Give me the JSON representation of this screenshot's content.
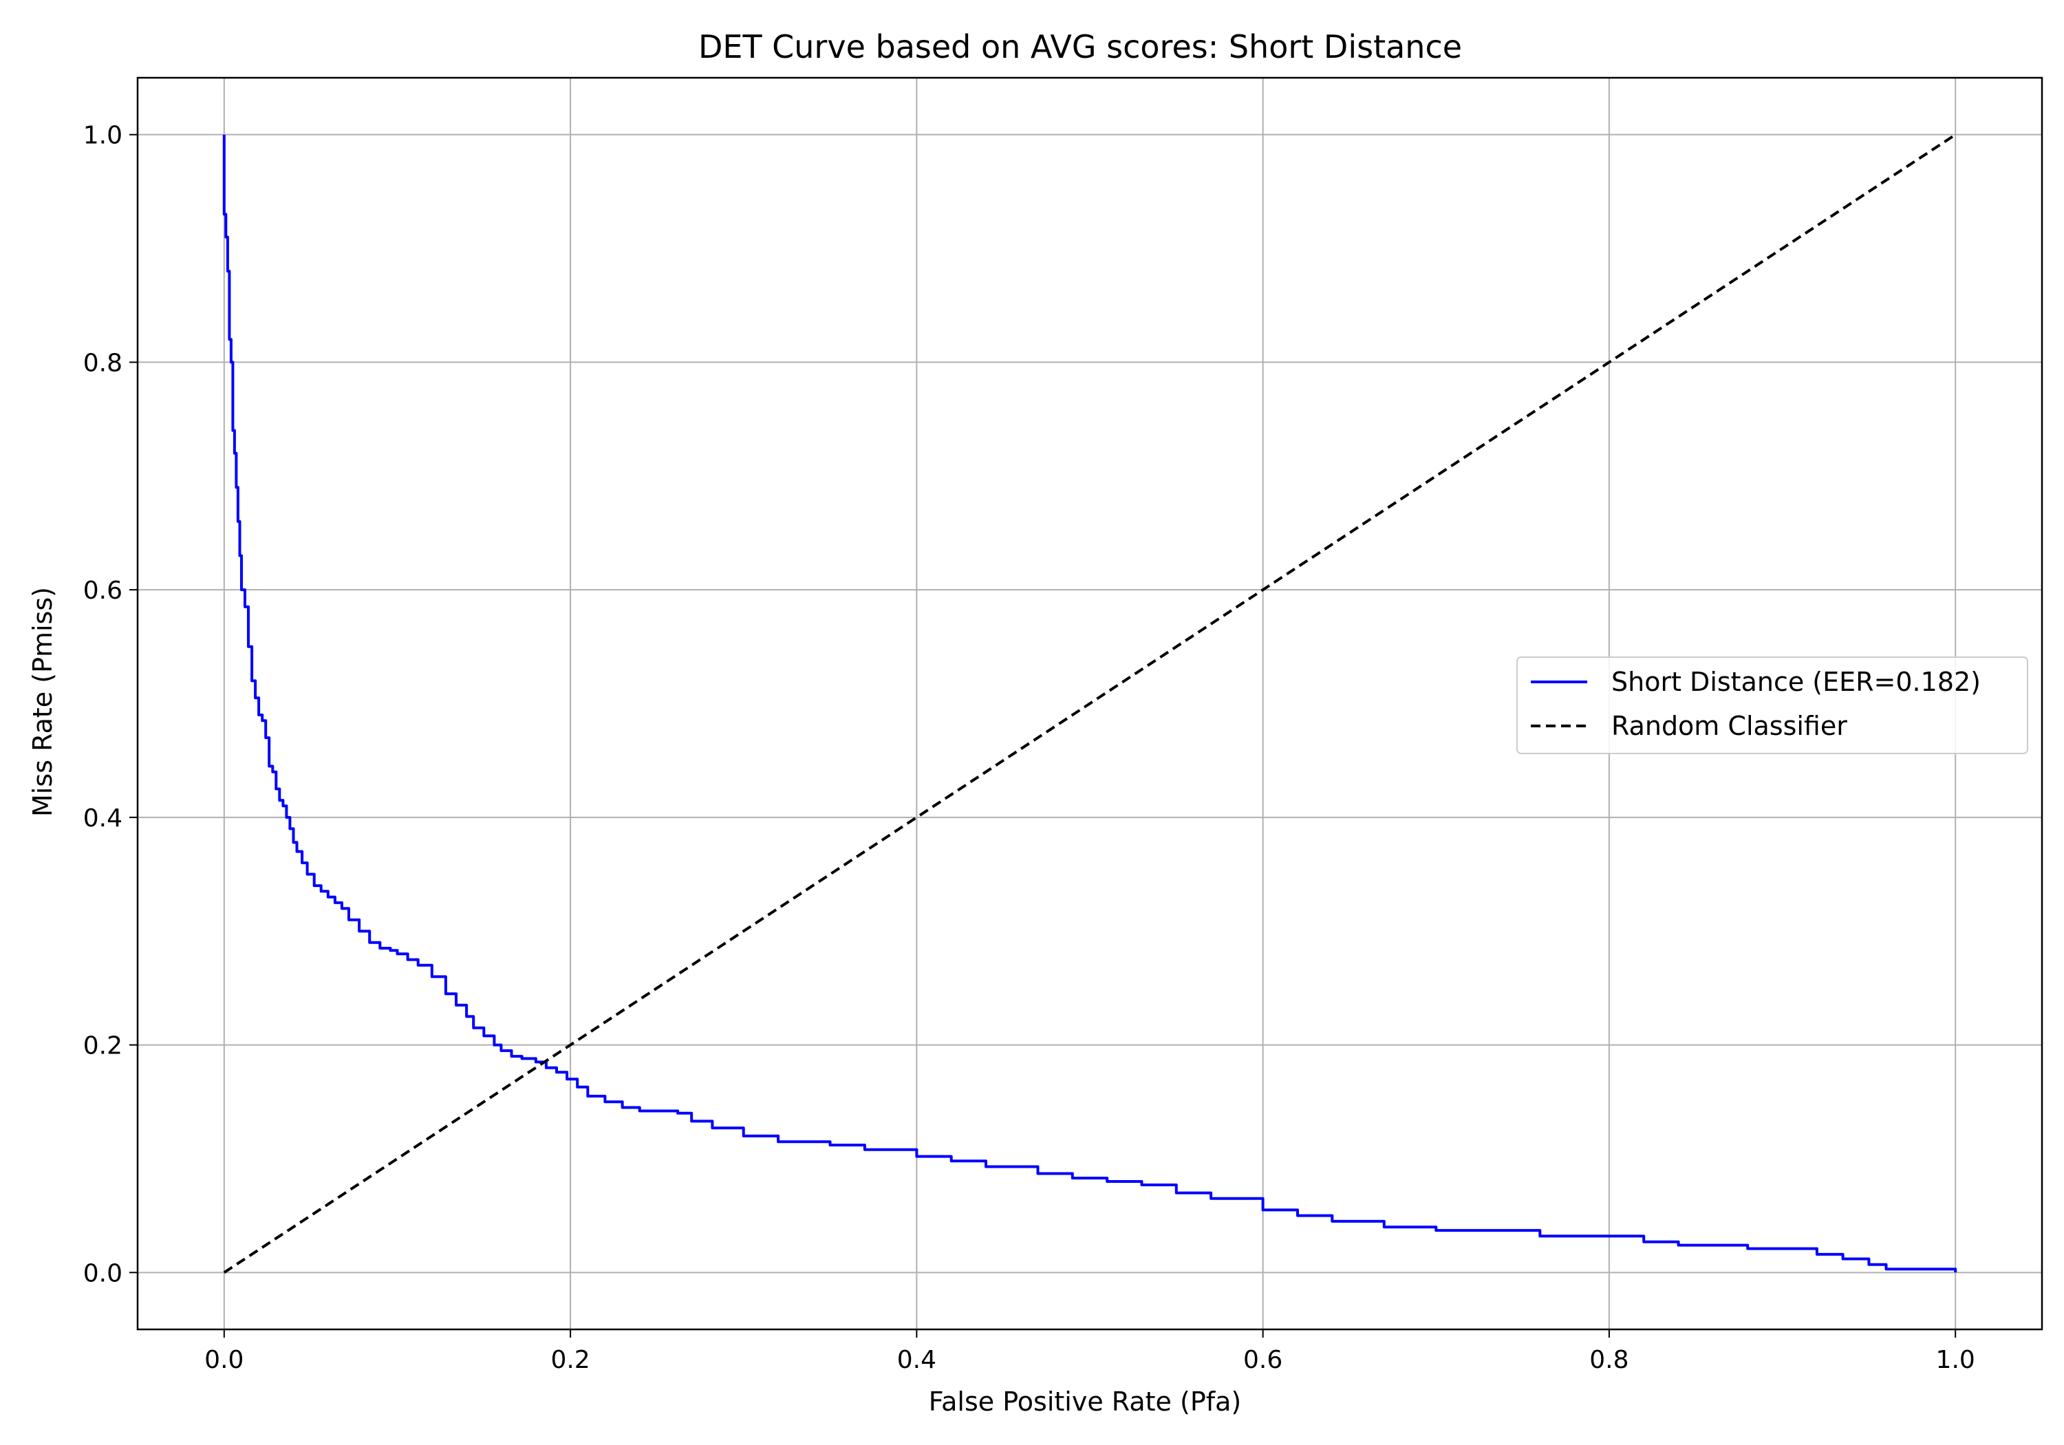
{
  "chart_data": {
    "type": "line",
    "title": "DET Curve based on AVG scores: Short Distance",
    "xlabel": "False Positive Rate (Pfa)",
    "ylabel": "Miss Rate (Pmiss)",
    "xlim": [
      -0.05,
      1.05
    ],
    "ylim": [
      -0.05,
      1.05
    ],
    "xticks": [
      "0.0",
      "0.2",
      "0.4",
      "0.6",
      "0.8",
      "1.0"
    ],
    "yticks": [
      "0.0",
      "0.2",
      "0.4",
      "0.6",
      "0.8",
      "1.0"
    ],
    "grid": true,
    "legend_position": "center-right",
    "series": [
      {
        "name": "Short Distance (EER=0.182)",
        "color": "#0000ff",
        "style": "solid",
        "x": [
          0.0,
          0.0,
          0.001,
          0.002,
          0.003,
          0.004,
          0.005,
          0.006,
          0.007,
          0.008,
          0.009,
          0.01,
          0.012,
          0.014,
          0.016,
          0.018,
          0.02,
          0.022,
          0.024,
          0.026,
          0.028,
          0.03,
          0.032,
          0.034,
          0.036,
          0.038,
          0.04,
          0.042,
          0.045,
          0.048,
          0.052,
          0.056,
          0.06,
          0.064,
          0.068,
          0.072,
          0.078,
          0.084,
          0.09,
          0.096,
          0.1,
          0.106,
          0.112,
          0.12,
          0.128,
          0.134,
          0.14,
          0.144,
          0.15,
          0.156,
          0.16,
          0.166,
          0.172,
          0.18,
          0.186,
          0.192,
          0.198,
          0.204,
          0.21,
          0.22,
          0.23,
          0.24,
          0.25,
          0.262,
          0.27,
          0.282,
          0.3,
          0.32,
          0.35,
          0.37,
          0.4,
          0.42,
          0.44,
          0.47,
          0.49,
          0.51,
          0.53,
          0.55,
          0.57,
          0.6,
          0.62,
          0.64,
          0.67,
          0.7,
          0.76,
          0.82,
          0.84,
          0.88,
          0.92,
          0.935,
          0.95,
          0.96,
          1.0
        ],
        "y": [
          1.0,
          0.93,
          0.91,
          0.88,
          0.82,
          0.8,
          0.74,
          0.72,
          0.69,
          0.66,
          0.63,
          0.6,
          0.585,
          0.55,
          0.52,
          0.505,
          0.49,
          0.485,
          0.47,
          0.445,
          0.44,
          0.425,
          0.415,
          0.41,
          0.4,
          0.39,
          0.378,
          0.37,
          0.36,
          0.35,
          0.34,
          0.335,
          0.33,
          0.325,
          0.32,
          0.31,
          0.3,
          0.29,
          0.285,
          0.283,
          0.28,
          0.275,
          0.27,
          0.26,
          0.245,
          0.235,
          0.225,
          0.215,
          0.208,
          0.2,
          0.195,
          0.19,
          0.188,
          0.185,
          0.18,
          0.176,
          0.17,
          0.163,
          0.155,
          0.15,
          0.145,
          0.142,
          0.142,
          0.14,
          0.133,
          0.127,
          0.12,
          0.115,
          0.112,
          0.108,
          0.102,
          0.098,
          0.093,
          0.087,
          0.083,
          0.08,
          0.077,
          0.07,
          0.065,
          0.055,
          0.05,
          0.045,
          0.04,
          0.037,
          0.032,
          0.027,
          0.024,
          0.021,
          0.016,
          0.012,
          0.007,
          0.003,
          0.0
        ]
      },
      {
        "name": "Random Classifier",
        "color": "#000000",
        "style": "dashed",
        "x": [
          0.0,
          1.0
        ],
        "y": [
          0.0,
          1.0
        ]
      }
    ]
  }
}
